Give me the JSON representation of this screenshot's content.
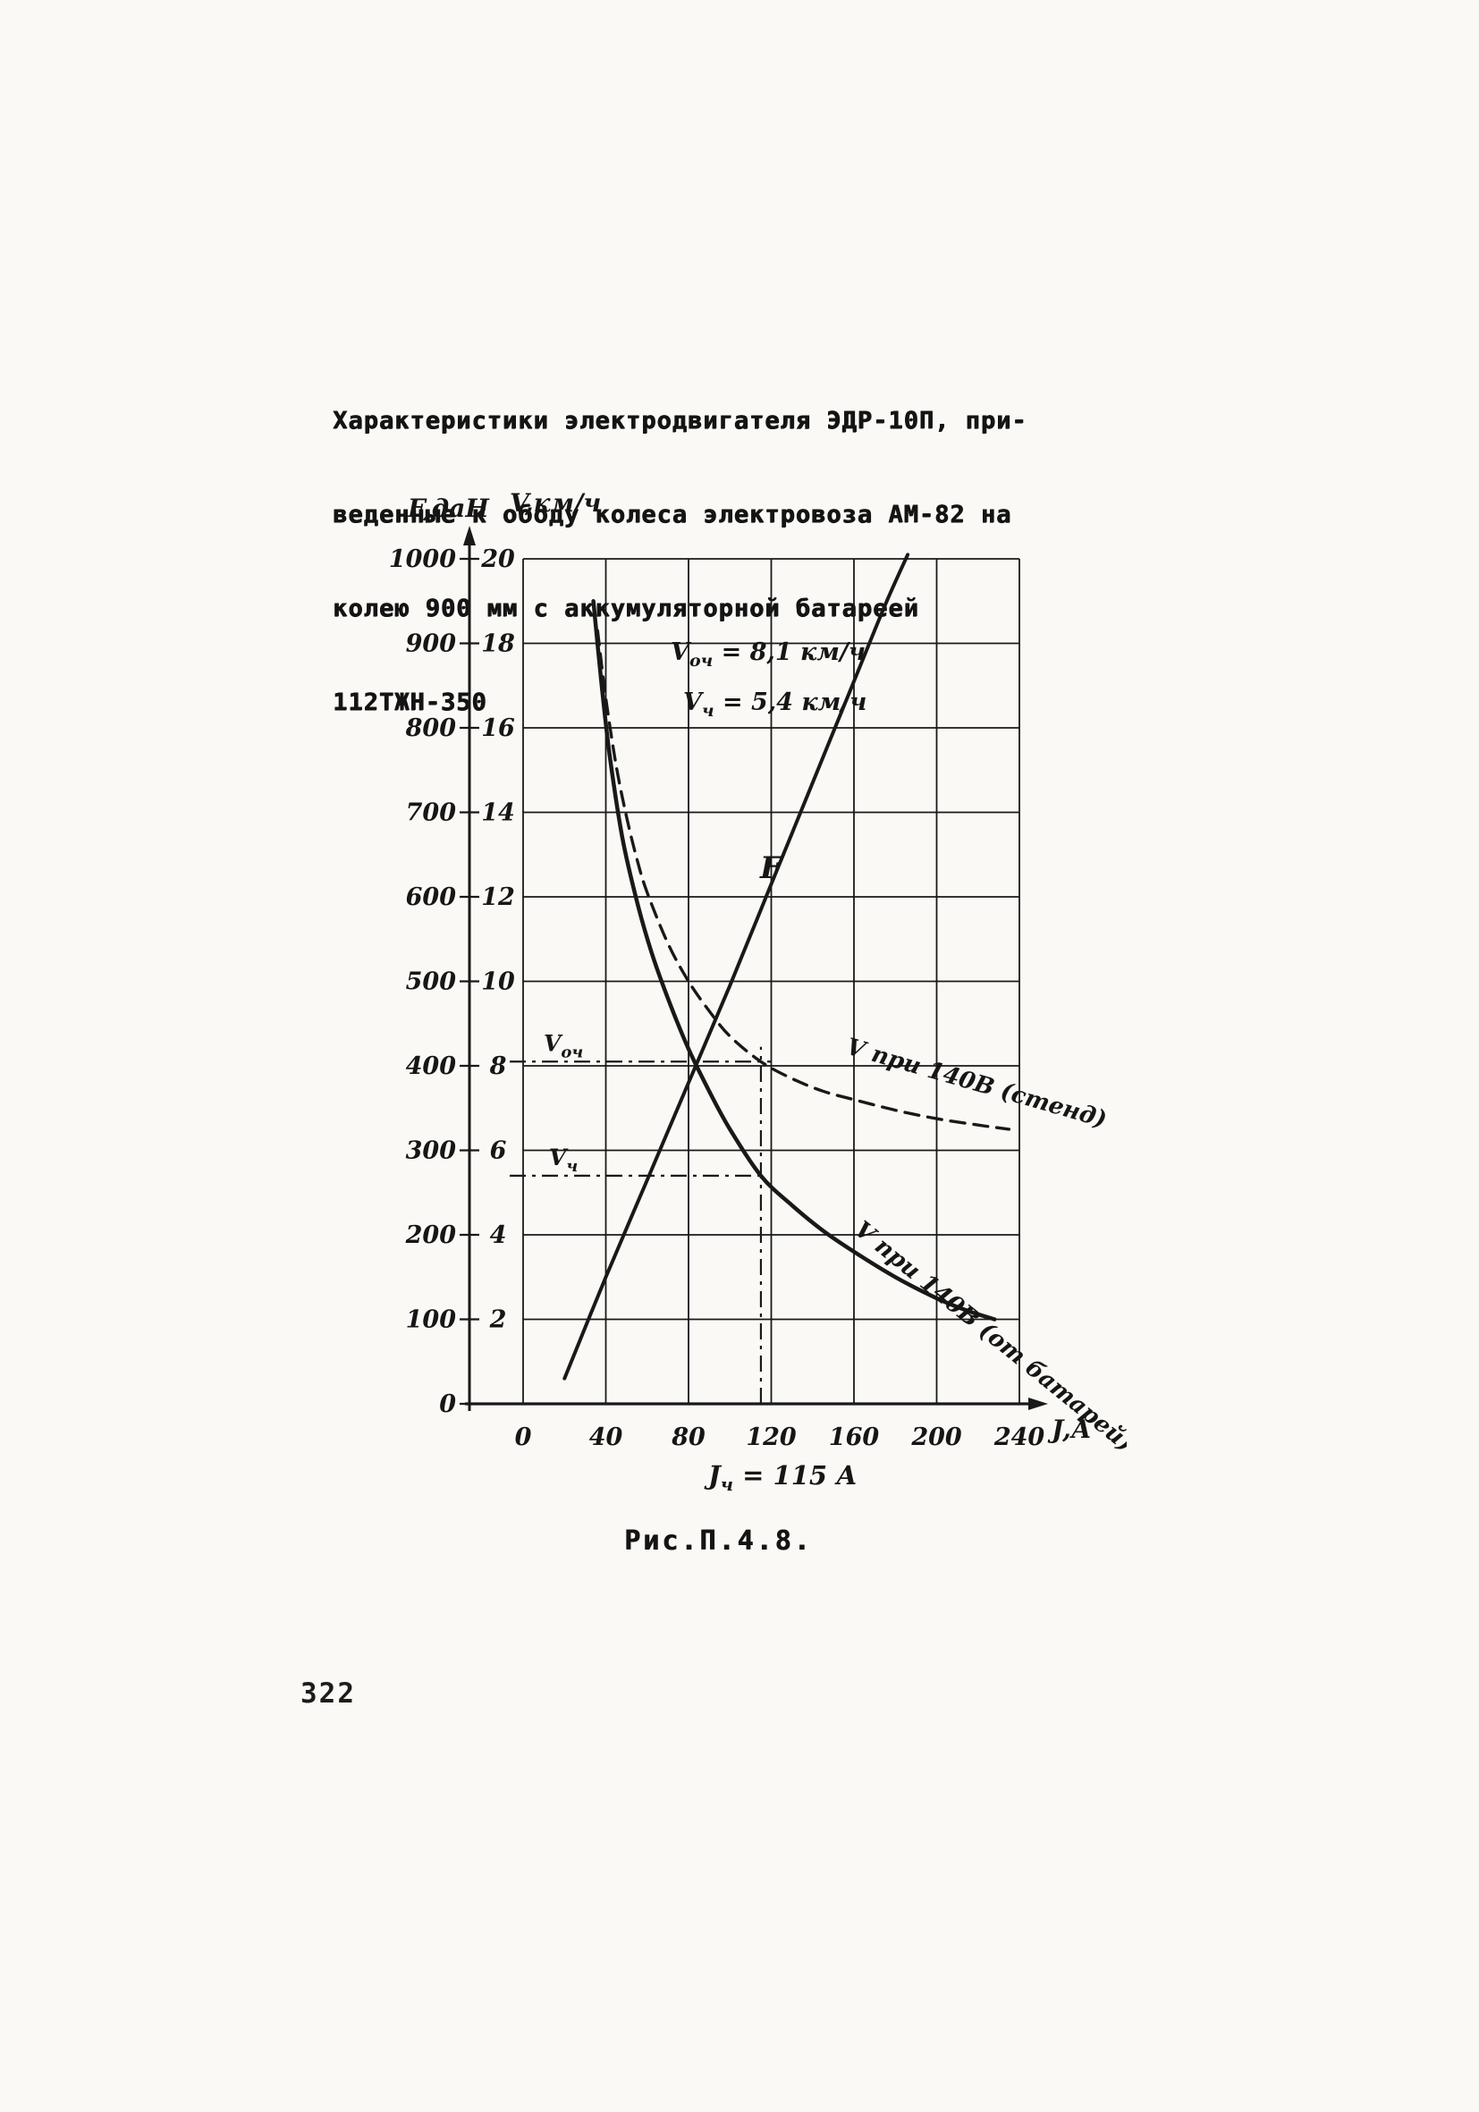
{
  "page": {
    "number": "322",
    "paper_color": "#faf9f5",
    "ink_color": "#1a1a1a"
  },
  "title": {
    "lines": [
      "Характеристики электродвигателя ЭДР-10П, при-",
      "веденные к ободу колеса электровоза АМ-82 на",
      "колею 900 мм с аккумуляторной батареей",
      "112ТЖН-350"
    ]
  },
  "figure": {
    "caption": "Рис.П.4.8."
  },
  "chart_data": {
    "type": "line",
    "title": "Характеристики электродвигателя ЭДР-10П",
    "grid": true,
    "x_axis": {
      "label": "J,А",
      "ticks": [
        0,
        40,
        80,
        120,
        160,
        200,
        240
      ],
      "range": [
        0,
        240
      ]
    },
    "f_axis": {
      "label": "F,даН",
      "ticks": [
        0,
        100,
        200,
        300,
        400,
        500,
        600,
        700,
        800,
        900,
        1000
      ],
      "range": [
        0,
        1000
      ]
    },
    "v_axis": {
      "label": "V,км/ч",
      "ticks": [
        2,
        4,
        6,
        8,
        10,
        12,
        14,
        16,
        18,
        20
      ],
      "range": [
        0,
        20
      ]
    },
    "series": [
      {
        "name": "F",
        "label": "F",
        "axis": "F",
        "style": "solid",
        "points": [
          [
            20,
            30
          ],
          [
            40,
            150
          ],
          [
            60,
            265
          ],
          [
            80,
            380
          ],
          [
            100,
            495
          ],
          [
            120,
            615
          ],
          [
            140,
            735
          ],
          [
            160,
            855
          ],
          [
            175,
            945
          ],
          [
            186,
            1005
          ]
        ]
      },
      {
        "name": "V-stend",
        "label": "V при 140В (стенд)",
        "axis": "V",
        "style": "dashed",
        "points": [
          [
            36,
            18.3
          ],
          [
            40,
            16.7
          ],
          [
            45,
            15.1
          ],
          [
            50,
            13.9
          ],
          [
            55,
            12.9
          ],
          [
            60,
            12.1
          ],
          [
            70,
            10.9
          ],
          [
            80,
            10.0
          ],
          [
            90,
            9.3
          ],
          [
            100,
            8.7
          ],
          [
            115,
            8.1
          ],
          [
            130,
            7.7
          ],
          [
            145,
            7.4
          ],
          [
            160,
            7.2
          ],
          [
            180,
            6.95
          ],
          [
            200,
            6.75
          ],
          [
            220,
            6.6
          ],
          [
            235,
            6.5
          ]
        ]
      },
      {
        "name": "V-battery",
        "label": "V при 140В (от батарей)",
        "axis": "V",
        "style": "solid",
        "points": [
          [
            34,
            19.0
          ],
          [
            38,
            17.0
          ],
          [
            42,
            15.3
          ],
          [
            48,
            13.4
          ],
          [
            55,
            11.9
          ],
          [
            62,
            10.7
          ],
          [
            70,
            9.6
          ],
          [
            80,
            8.4
          ],
          [
            90,
            7.4
          ],
          [
            100,
            6.5
          ],
          [
            115,
            5.4
          ],
          [
            130,
            4.7
          ],
          [
            145,
            4.1
          ],
          [
            160,
            3.6
          ],
          [
            180,
            3.0
          ],
          [
            200,
            2.5
          ],
          [
            215,
            2.2
          ],
          [
            228,
            2.0
          ]
        ]
      }
    ],
    "annotations": {
      "values": [
        {
          "base": "V",
          "sub": "оч",
          "rest": " = 8,1 км/ч"
        },
        {
          "base": "V",
          "sub": "ч",
          "rest": " = 5,4 км/ч"
        }
      ],
      "h_guides": [
        {
          "v": 8.1,
          "to_j": 120,
          "label": {
            "base": "V",
            "sub": "оч",
            "rest": ""
          }
        },
        {
          "v": 5.4,
          "to_j": 115,
          "label": {
            "base": "V",
            "sub": "ч",
            "rest": ""
          }
        }
      ],
      "v_guide": {
        "j": 115,
        "to_v": 8.45
      },
      "x_note": {
        "base": "J",
        "sub": "ч",
        "rest": " = 115 А"
      }
    }
  }
}
